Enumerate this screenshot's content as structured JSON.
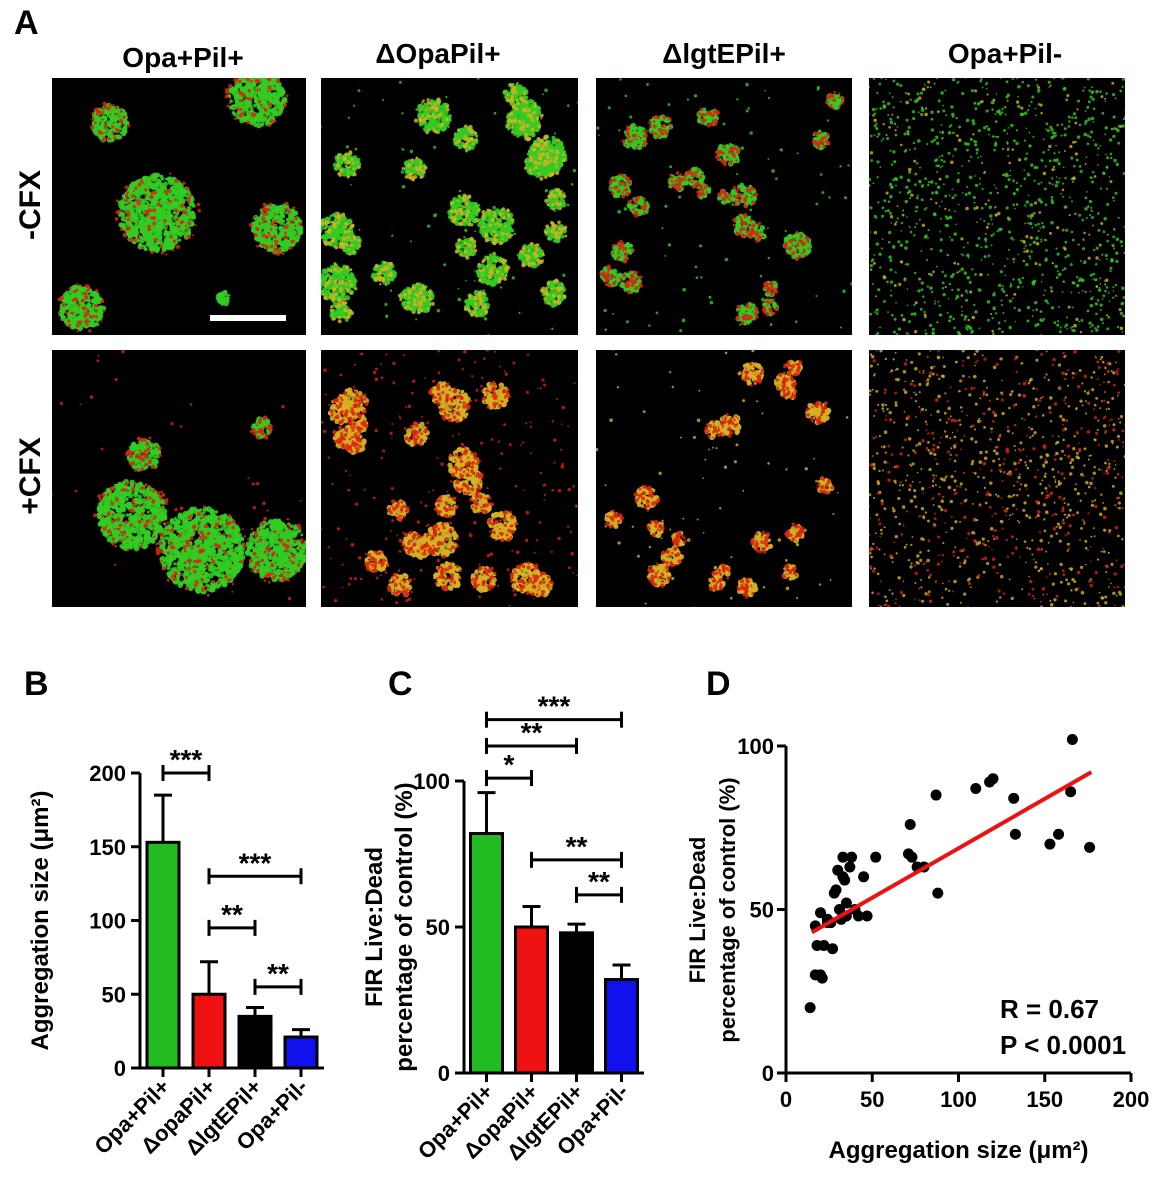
{
  "panel_A": {
    "letter": "A",
    "columns": [
      "Opa+Pil+",
      "ΔOpaPil+",
      "ΔlgtEPil+",
      "Opa+Pil-"
    ],
    "rows": [
      "-CFX",
      "+CFX"
    ],
    "colors": {
      "live": "#33cc22",
      "dead": "#dd2211",
      "merge": "#d4b222",
      "background": "#000000"
    }
  },
  "chart_data": [
    {
      "panel": "B",
      "type": "bar",
      "ylabel": "Aggregation size (μm²)",
      "categories": [
        "Opa+Pil+",
        "ΔopaPil+",
        "ΔlgtEPil+",
        "Opa+Pil-"
      ],
      "values": [
        153,
        50,
        35,
        21
      ],
      "errors": [
        32,
        22,
        6,
        5
      ],
      "colors": [
        "#22bb22",
        "#ee1111",
        "#000000",
        "#1111ee"
      ],
      "ylim": [
        0,
        200
      ],
      "yticks": [
        "0",
        "50",
        "100",
        "150",
        "200"
      ],
      "significance": [
        {
          "from": 0,
          "to": 1,
          "label": "***",
          "y": 200
        },
        {
          "from": 1,
          "to": 3,
          "label": "***",
          "y": 130
        },
        {
          "from": 1,
          "to": 2,
          "label": "**",
          "y": 95
        },
        {
          "from": 2,
          "to": 3,
          "label": "**",
          "y": 55
        }
      ]
    },
    {
      "panel": "C",
      "type": "bar",
      "ylabel": "FIR Live:Dead percentage of control (%)",
      "categories": [
        "Opa+Pil+",
        "ΔopaPil+",
        "ΔlgtEPil+",
        "Opa+Pil-"
      ],
      "values": [
        82,
        50,
        48,
        32
      ],
      "errors": [
        14,
        7,
        3,
        5
      ],
      "colors": [
        "#22bb22",
        "#ee1111",
        "#000000",
        "#1111ee"
      ],
      "ylim": [
        0,
        100
      ],
      "yticks": [
        "0",
        "50",
        "100"
      ],
      "significance": [
        {
          "from": 0,
          "to": 3,
          "label": "***",
          "y": 121
        },
        {
          "from": 0,
          "to": 2,
          "label": "**",
          "y": 112
        },
        {
          "from": 0,
          "to": 1,
          "label": "*",
          "y": 101
        },
        {
          "from": 1,
          "to": 3,
          "label": "**",
          "y": 73
        },
        {
          "from": 2,
          "to": 3,
          "label": "**",
          "y": 61
        }
      ]
    },
    {
      "panel": "D",
      "type": "scatter",
      "xlabel": "Aggregation size (μm²)",
      "ylabel": "FIR Live:Dead percentage of control (%)",
      "xlim": [
        0,
        200
      ],
      "ylim": [
        0,
        100
      ],
      "xticks": [
        "0",
        "50",
        "100",
        "150",
        "200"
      ],
      "yticks": [
        "0",
        "50",
        "100"
      ],
      "x": [
        14,
        17,
        18,
        20,
        17,
        21,
        20,
        24,
        22,
        24,
        28,
        27,
        29,
        26,
        31,
        30,
        33,
        35,
        34,
        35,
        38,
        37,
        33,
        32,
        40,
        45,
        47,
        42,
        52,
        72,
        71,
        73,
        76,
        80,
        88,
        87,
        110,
        118,
        120,
        132,
        133,
        153,
        158,
        165,
        166,
        176
      ],
      "y": [
        20,
        30,
        39,
        30,
        45,
        29,
        49,
        47,
        39,
        46,
        55,
        38,
        56,
        46,
        50,
        62,
        66,
        48,
        59,
        52,
        66,
        63,
        60,
        47,
        50,
        60,
        48,
        48,
        66,
        76,
        67,
        66,
        63,
        63,
        55,
        85,
        87,
        89,
        90,
        84,
        73,
        70,
        73,
        86,
        102,
        69
      ],
      "fit": {
        "x": [
          15,
          177
        ],
        "y": [
          43,
          92
        ],
        "color": "#ee1111"
      },
      "annotations": [
        "R = 0.67",
        "P < 0.0001"
      ]
    }
  ],
  "panel_letters": [
    "B",
    "C",
    "D"
  ]
}
